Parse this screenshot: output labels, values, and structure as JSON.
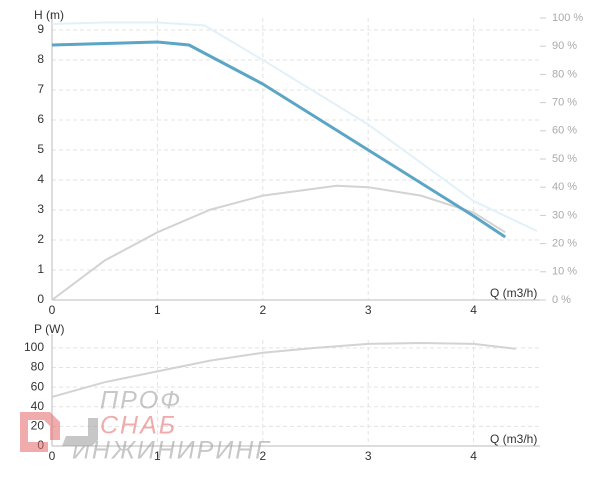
{
  "chart_data": [
    {
      "type": "line",
      "ylabel": "H (m)",
      "xlabel": "Q (m3/h)",
      "xlim": [
        0,
        4.63
      ],
      "xticks": [
        0,
        1,
        2,
        3,
        4
      ],
      "ylim": [
        0,
        9.4
      ],
      "yticks": [
        0,
        1,
        2,
        3,
        4,
        5,
        6,
        7,
        8,
        9
      ],
      "y2lim": [
        0,
        100
      ],
      "y2ticks": [
        {
          "value": 0,
          "label": "0 %"
        },
        {
          "value": 10,
          "label": "10 %"
        },
        {
          "value": 20,
          "label": "20 %"
        },
        {
          "value": 30,
          "label": "30 %"
        },
        {
          "value": 40,
          "label": "40 %"
        },
        {
          "value": 50,
          "label": "50 %"
        },
        {
          "value": 60,
          "label": "60 %"
        },
        {
          "value": 70,
          "label": "70 %"
        },
        {
          "value": 80,
          "label": "80 %"
        },
        {
          "value": 90,
          "label": "90 %"
        },
        {
          "value": 100,
          "label": "100 %"
        }
      ],
      "grid": true,
      "series": [
        {
          "color": "#e2f1f7",
          "x": [
            0,
            0.5,
            1,
            1.45,
            2,
            3,
            4,
            4.6
          ],
          "values": [
            9.2,
            9.25,
            9.25,
            9.15,
            8.0,
            5.85,
            3.3,
            2.3
          ]
        },
        {
          "color": "#d3d3d3",
          "axis": "y2",
          "x": [
            0,
            0.5,
            1,
            1.5,
            2,
            2.7,
            3,
            3.5,
            4,
            4.3
          ],
          "values": [
            0,
            14,
            24,
            32,
            37,
            40.5,
            40,
            37,
            31,
            24
          ]
        },
        {
          "color": "#5ba6c6",
          "x": [
            0,
            0.5,
            1,
            1.3,
            2,
            3,
            4,
            4.3
          ],
          "values": [
            8.5,
            8.55,
            8.6,
            8.5,
            7.2,
            5.0,
            2.8,
            2.1
          ]
        }
      ]
    },
    {
      "type": "line",
      "ylabel": "P (W)",
      "xlabel": "Q (m3/h)",
      "xlim": [
        0,
        4.63
      ],
      "xticks": [
        0,
        1,
        2,
        3,
        4
      ],
      "ylim": [
        0,
        108
      ],
      "yticks": [
        0,
        20,
        40,
        60,
        80,
        100
      ],
      "grid": true,
      "series": [
        {
          "color": "#d3d3d3",
          "x": [
            0,
            0.5,
            1,
            1.5,
            2,
            2.5,
            3,
            3.5,
            4,
            4.4
          ],
          "values": [
            50,
            65,
            76,
            87,
            95,
            100,
            104,
            105,
            104,
            99
          ]
        }
      ]
    }
  ],
  "watermark": {
    "line1": "ПРОФ",
    "line2": "СНАБ",
    "line3": "ИНЖИНИРИНГ"
  }
}
